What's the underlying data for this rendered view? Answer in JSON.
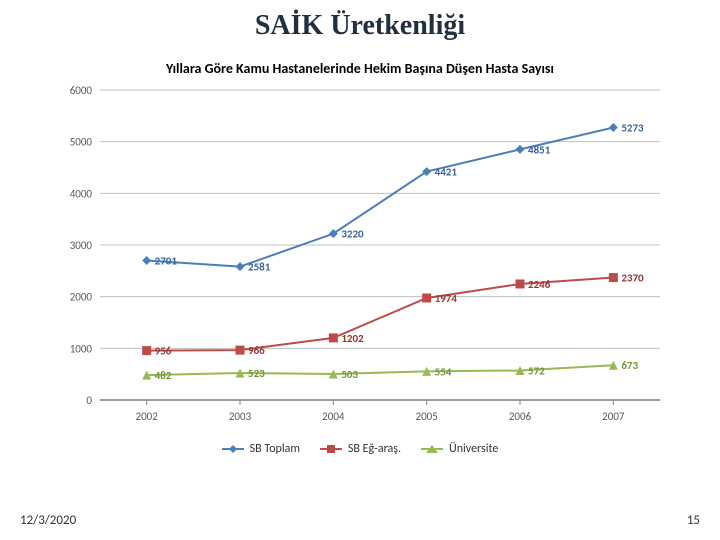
{
  "page_title": "SAİK Üretkenliği",
  "footer": {
    "date": "12/3/2020",
    "page_number": "15"
  },
  "chart": {
    "type": "line",
    "title": "Yıllara Göre Kamu Hastanelerinde Hekim Başına Düşen Hasta Sayısı",
    "title_fontsize": 14,
    "title_fontweight": "bold",
    "x": {
      "categories": [
        "2002",
        "2003",
        "2004",
        "2005",
        "2006",
        "2007"
      ],
      "label_fontsize": 11
    },
    "y": {
      "min": 0,
      "max": 6000,
      "tick_step": 1000,
      "tick_labels": [
        "0",
        "1000",
        "2000",
        "3000",
        "4000",
        "5000",
        "6000"
      ],
      "label_fontsize": 11
    },
    "background_color": "#ffffff",
    "grid_color": "#bfbfbf",
    "axis_color": "#7f7f7f",
    "plot_border_color": "#7f7f7f",
    "series": [
      {
        "name": "SB Toplam",
        "color": "#4a7ebb",
        "marker": "diamond",
        "marker_color": "#4a7ebb",
        "line_width": 2,
        "values": [
          2701,
          2581,
          3220,
          4421,
          4851,
          5273
        ],
        "label_color": "#39639d",
        "label_fontsize": 11,
        "label_fontweight": "bold"
      },
      {
        "name": "SB Eğ-araş.",
        "color": "#be4b48",
        "marker": "square",
        "marker_color": "#be4b48",
        "line_width": 2,
        "values": [
          956,
          966,
          1202,
          1974,
          2246,
          2370
        ],
        "label_color": "#963634",
        "label_fontsize": 11,
        "label_fontweight": "bold"
      },
      {
        "name": "Üniversite",
        "color": "#98b954",
        "marker": "triangle",
        "marker_color": "#98b954",
        "line_width": 2,
        "values": [
          482,
          523,
          503,
          554,
          572,
          673
        ],
        "label_color": "#76933c",
        "label_fontsize": 11,
        "label_fontweight": "bold"
      }
    ],
    "legend": {
      "position": "bottom",
      "fontsize": 12,
      "box_border": "#bfbfbf"
    }
  }
}
